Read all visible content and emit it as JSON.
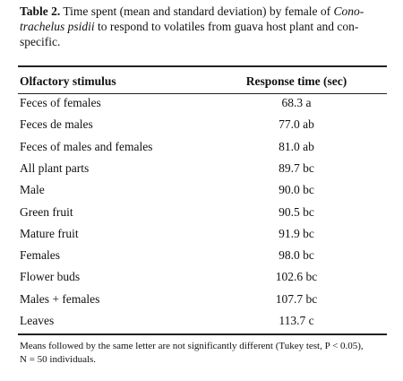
{
  "caption": {
    "label": "Table 2.",
    "lines": [
      [
        {
          "text": " Time spent (mean and standard deviation) by female of ",
          "italic": false
        },
        {
          "text": "Cono-",
          "italic": true
        }
      ],
      [
        {
          "text": "trachelus psidii",
          "italic": true
        },
        {
          "text": " to respond to volatiles from guava host plant and con-",
          "italic": false
        }
      ],
      [
        {
          "text": "specific.",
          "italic": false
        }
      ]
    ]
  },
  "table": {
    "header": [
      "Olfactory stimulus",
      "Response time (sec)"
    ],
    "rows": [
      [
        "Feces of females",
        "68.3 a"
      ],
      [
        "Feces de males",
        "77.0 ab"
      ],
      [
        "Feces of males and females",
        "81.0 ab"
      ],
      [
        "All plant parts",
        "89.7 bc"
      ],
      [
        "Male",
        "90.0 bc"
      ],
      [
        "Green fruit",
        "90.5 bc"
      ],
      [
        "Mature fruit",
        "91.9 bc"
      ],
      [
        "Females",
        "98.0 bc"
      ],
      [
        "Flower buds",
        "102.6 bc"
      ],
      [
        "Males + females",
        "107.7 bc"
      ],
      [
        "Leaves",
        "113.7 c"
      ]
    ]
  },
  "footnote": [
    "Means followed by the same letter are not significantly different (Tukey test, P < 0.05),",
    "N = 50 individuals."
  ]
}
